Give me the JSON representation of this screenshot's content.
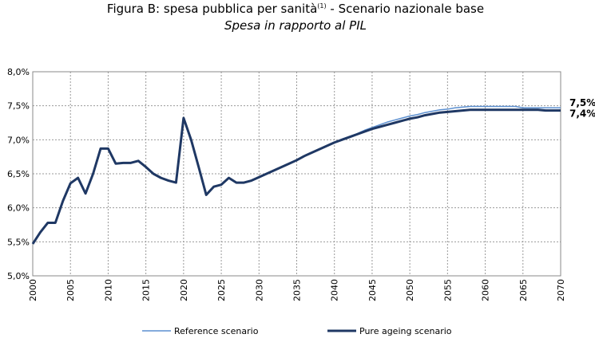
{
  "chart_data": {
    "type": "line",
    "title": "Figura B: spesa pubblica per sanità",
    "title_note": "(1)",
    "title_rest": " - Scenario nazionale base",
    "subtitle": "Spesa in rapporto al PIL",
    "x": [
      2000,
      2001,
      2002,
      2003,
      2004,
      2005,
      2006,
      2007,
      2008,
      2009,
      2010,
      2011,
      2012,
      2013,
      2014,
      2015,
      2016,
      2017,
      2018,
      2019,
      2020,
      2021,
      2022,
      2023,
      2024,
      2025,
      2026,
      2027,
      2028,
      2029,
      2030,
      2031,
      2032,
      2033,
      2034,
      2035,
      2036,
      2037,
      2038,
      2039,
      2040,
      2041,
      2042,
      2043,
      2044,
      2045,
      2046,
      2047,
      2048,
      2049,
      2050,
      2051,
      2052,
      2053,
      2054,
      2055,
      2056,
      2057,
      2058,
      2059,
      2060,
      2061,
      2062,
      2063,
      2064,
      2065,
      2066,
      2067,
      2068,
      2069,
      2070
    ],
    "xlim": [
      2000,
      2070
    ],
    "xticks": [
      2000,
      2005,
      2010,
      2015,
      2020,
      2025,
      2030,
      2035,
      2040,
      2045,
      2050,
      2055,
      2060,
      2065,
      2070
    ],
    "ylim": [
      5.0,
      8.0
    ],
    "yticks": [
      {
        "value": 5.0,
        "label": "5,0%"
      },
      {
        "value": 5.5,
        "label": "5,5%"
      },
      {
        "value": 6.0,
        "label": "6,0%"
      },
      {
        "value": 6.5,
        "label": "6,5%"
      },
      {
        "value": 7.0,
        "label": "7,0%"
      },
      {
        "value": 7.5,
        "label": "7,5%"
      },
      {
        "value": 8.0,
        "label": "8,0%"
      }
    ],
    "grid": true,
    "series": [
      {
        "name": "Reference scenario",
        "color": "#5b8fd0",
        "values": [
          5.47,
          5.64,
          5.78,
          5.78,
          6.1,
          6.36,
          6.44,
          6.21,
          6.5,
          6.87,
          6.87,
          6.65,
          6.66,
          6.66,
          6.69,
          6.6,
          6.5,
          6.44,
          6.4,
          6.37,
          7.32,
          7.0,
          6.6,
          6.19,
          6.31,
          6.34,
          6.44,
          6.37,
          6.37,
          6.4,
          6.45,
          6.5,
          6.55,
          6.6,
          6.65,
          6.7,
          6.76,
          6.81,
          6.86,
          6.91,
          6.96,
          7.01,
          7.05,
          7.09,
          7.14,
          7.18,
          7.22,
          7.26,
          7.29,
          7.32,
          7.35,
          7.37,
          7.4,
          7.42,
          7.44,
          7.45,
          7.47,
          7.48,
          7.49,
          7.49,
          7.49,
          7.49,
          7.49,
          7.49,
          7.49,
          7.47,
          7.47,
          7.47,
          7.47,
          7.47,
          7.47
        ]
      },
      {
        "name": "Pure ageing scenario",
        "color": "#1f3864",
        "values": [
          5.47,
          5.64,
          5.78,
          5.78,
          6.1,
          6.36,
          6.44,
          6.21,
          6.5,
          6.87,
          6.87,
          6.65,
          6.66,
          6.66,
          6.69,
          6.6,
          6.5,
          6.44,
          6.4,
          6.37,
          7.32,
          7.0,
          6.6,
          6.19,
          6.31,
          6.34,
          6.44,
          6.37,
          6.37,
          6.4,
          6.45,
          6.5,
          6.55,
          6.6,
          6.65,
          6.7,
          6.76,
          6.81,
          6.86,
          6.91,
          6.96,
          7.0,
          7.04,
          7.08,
          7.12,
          7.16,
          7.19,
          7.22,
          7.25,
          7.28,
          7.31,
          7.33,
          7.36,
          7.38,
          7.4,
          7.41,
          7.42,
          7.43,
          7.44,
          7.44,
          7.44,
          7.44,
          7.44,
          7.44,
          7.44,
          7.44,
          7.44,
          7.44,
          7.43,
          7.43,
          7.43
        ]
      }
    ],
    "annotations": [
      "7,5%",
      "7,4%"
    ]
  }
}
